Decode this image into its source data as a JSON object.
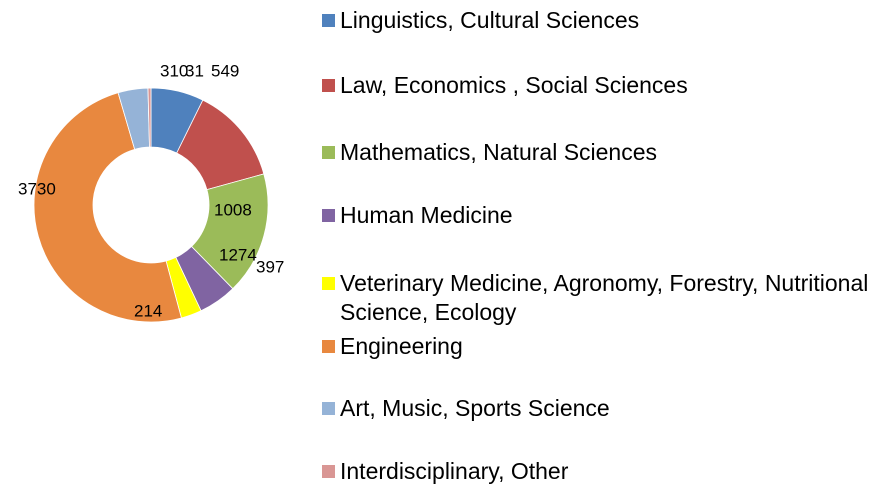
{
  "chart_data": {
    "type": "donut",
    "categories": [
      "Linguistics, Cultural Sciences",
      "Law, Economics , Social Sciences",
      "Mathematics, Natural Sciences",
      "Human Medicine",
      "Veterinary Medicine, Agronomy, Forestry, Nutritional Science, Ecology",
      "Engineering",
      "Art, Music, Sports Science",
      "Interdisciplinary, Other"
    ],
    "values": [
      549,
      1008,
      1274,
      397,
      214,
      3730,
      310,
      31
    ],
    "colors": [
      "#4f81bd",
      "#c0504d",
      "#9bbb59",
      "#8064a2",
      "#ffff00",
      "#e8883f",
      "#95b3d7",
      "#d99694"
    ],
    "legend": "right"
  }
}
